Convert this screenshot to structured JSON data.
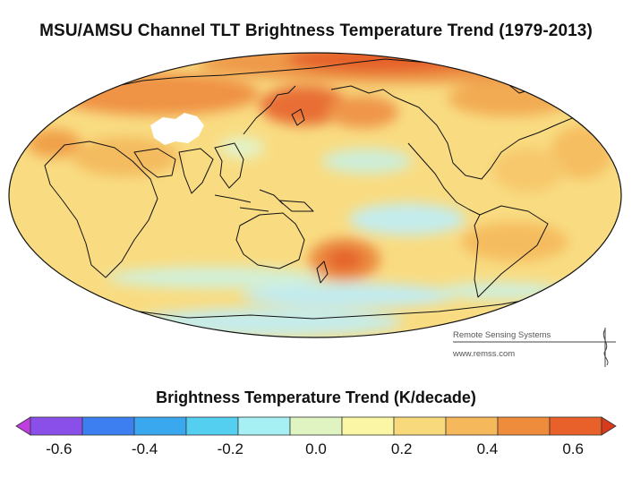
{
  "title": "MSU/AMSU Channel TLT Brightness Temperature Trend (1979-2013)",
  "credit": {
    "line1": "Remote Sensing Systems",
    "line2": "www.remss.com"
  },
  "legend": {
    "title": "Brightness Temperature Trend (K/decade)",
    "tick_labels": [
      "-0.6",
      "-0.4",
      "-0.2",
      "0.0",
      "0.2",
      "0.4",
      "0.6"
    ],
    "tick_values": [
      -0.6,
      -0.4,
      -0.2,
      0.0,
      0.2,
      0.4,
      0.6
    ],
    "range": [
      -0.7,
      0.7
    ],
    "colors": [
      "#c03de0",
      "#8a4fe8",
      "#3d7ef0",
      "#3aa8ee",
      "#55cff0",
      "#a6f0f4",
      "#e0f4c2",
      "#fbf5a6",
      "#f8da7c",
      "#f5b85a",
      "#ef8c3c",
      "#e8602a",
      "#d83a1c"
    ]
  },
  "map": {
    "projection": "Mollweide",
    "colors": {
      "base": "#f9dc82",
      "warm": "#f3b458",
      "hot": "#e8743a",
      "cool": "#d8f0cc",
      "cold": "#bfeaf0",
      "nodata": "#ffffff",
      "coast": "#111111"
    }
  }
}
